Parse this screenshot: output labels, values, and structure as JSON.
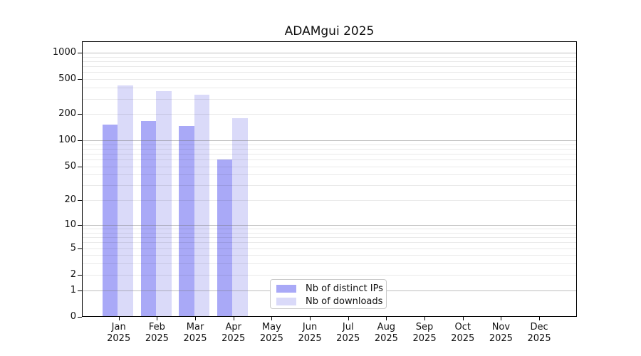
{
  "chart_data": {
    "type": "bar",
    "title": "ADAMgui 2025",
    "categories": [
      "Jan",
      "Feb",
      "Mar",
      "Apr",
      "May",
      "Jun",
      "Jul",
      "Aug",
      "Sep",
      "Oct",
      "Nov",
      "Dec"
    ],
    "category_year": "2025",
    "series": [
      {
        "name": "Nb of distinct IPs",
        "color": "#a9a9f7",
        "values": [
          150,
          165,
          145,
          60,
          null,
          null,
          null,
          null,
          null,
          null,
          null,
          null
        ]
      },
      {
        "name": "Nb of downloads",
        "color": "#dadaf9",
        "values": [
          420,
          365,
          330,
          178,
          null,
          null,
          null,
          null,
          null,
          null,
          null,
          null
        ]
      }
    ],
    "yticks": [
      0,
      1,
      2,
      5,
      10,
      20,
      50,
      100,
      200,
      500,
      1000
    ],
    "yscale": "log10(value+1)",
    "ylim": [
      0,
      1350
    ],
    "xlabel": "",
    "ylabel": "",
    "grid": "horizontal major at 1,10,100,1000 and minor at 2-9 per decade, drawn over bars",
    "legend_position": "inside-bottom-center"
  }
}
